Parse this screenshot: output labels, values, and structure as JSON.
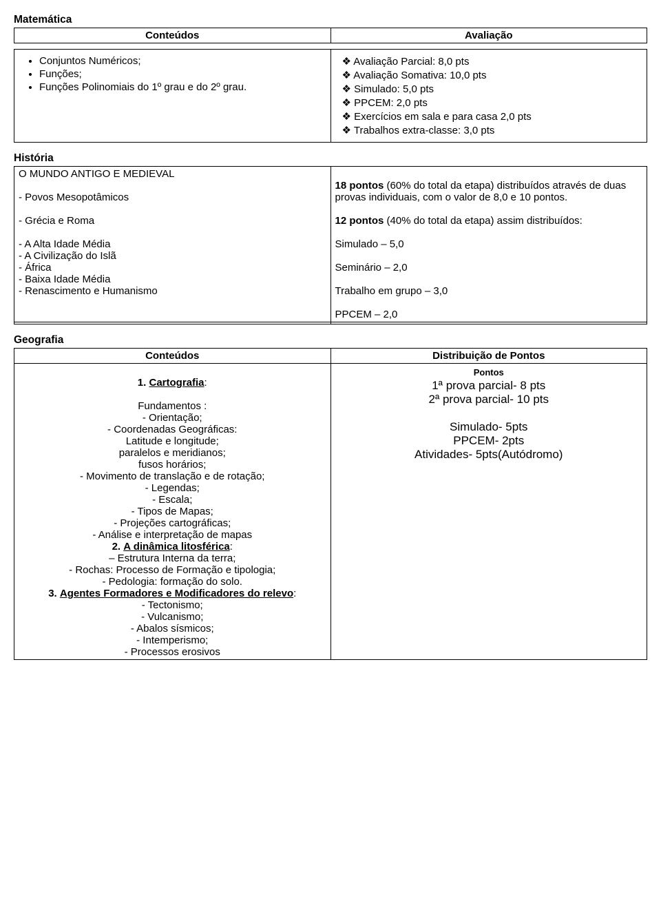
{
  "matematica": {
    "title": "Matemática",
    "header_left": "Conteúdos",
    "header_right": "Avaliação",
    "content_items": [
      "Conjuntos Numéricos;",
      "Funções;",
      "Funções Polinomiais do 1º grau e do 2º grau."
    ],
    "eval_items": [
      "Avaliação Parcial: 8,0 pts",
      "Avaliação Somativa: 10,0 pts",
      "Simulado: 5,0 pts",
      "PPCEM: 2,0 pts",
      "Exercícios em sala e para casa 2,0 pts",
      "Trabalhos extra-classe: 3,0 pts"
    ]
  },
  "historia": {
    "title": "História",
    "left_heading": "O MUNDO ANTIGO E MEDIEVAL",
    "left_items": [
      "- Povos Mesopotâmicos",
      "- Grécia e Roma",
      "- A Alta Idade Média",
      "- A Civilização do Islã",
      "- África",
      "- Baixa Idade Média",
      "- Renascimento e  Humanismo"
    ],
    "right_p1_bold1": "18 pontos",
    "right_p1_rest1": "  (60% do total da etapa) distribuídos através de duas provas individuais, com o valor de 8,0 e 10 pontos.",
    "right_p2_bold": "12 pontos",
    "right_p2_rest": " (40% do total da etapa) assim distribuídos:",
    "right_lines": [
      "Simulado – 5,0",
      "Seminário – 2,0",
      "Trabalho em grupo – 3,0",
      "PPCEM – 2,0"
    ]
  },
  "geografia": {
    "title": "Geografia",
    "header_left": "Conteúdos",
    "header_right": "Distribuição de Pontos",
    "sec1_num": "1.",
    "sec1_title": "Cartografia",
    "sec1_colon": ":",
    "sec1_lines": [
      "Fundamentos :",
      "- Orientação;",
      "- Coordenadas Geográficas:",
      "Latitude e longitude;",
      "paralelos e meridianos;",
      "fusos horários;",
      "- Movimento de translação e de rotação;",
      "-  Legendas;",
      "-  Escala;",
      "-  Tipos de Mapas;",
      "-  Projeções cartográficas;",
      "- Análise e interpretação de mapas"
    ],
    "sec2_num": "2.",
    "sec2_title": "A dinâmica litosférica",
    "sec2_colon": ":",
    "sec2_lines": [
      "– Estrutura Interna da terra;",
      "- Rochas: Processo de Formação e tipologia;",
      "- Pedologia: formação do solo."
    ],
    "sec3_num": "3.",
    "sec3_title": "Agentes Formadores e Modificadores do relevo",
    "sec3_colon": ":",
    "sec3_lines": [
      "- Tectonismo;",
      "- Vulcanismo;",
      "- Abalos sísmicos;",
      "- Intemperismo;",
      "- Processos erosivos"
    ],
    "pontos_label": "Pontos",
    "right_lines": [
      "1ª prova parcial-  8 pts",
      "2ª prova parcial-  10 pts",
      "",
      "Simulado-  5pts",
      "PPCEM-  2pts",
      "Atividades-  5pts(Autódromo)"
    ]
  },
  "style": {
    "font_body": "Arial",
    "font_geo_right": "Verdana",
    "font_size_body": 15,
    "font_size_geo_right": 17,
    "bg": "#ffffff",
    "text": "#000000",
    "border": "#000000"
  }
}
